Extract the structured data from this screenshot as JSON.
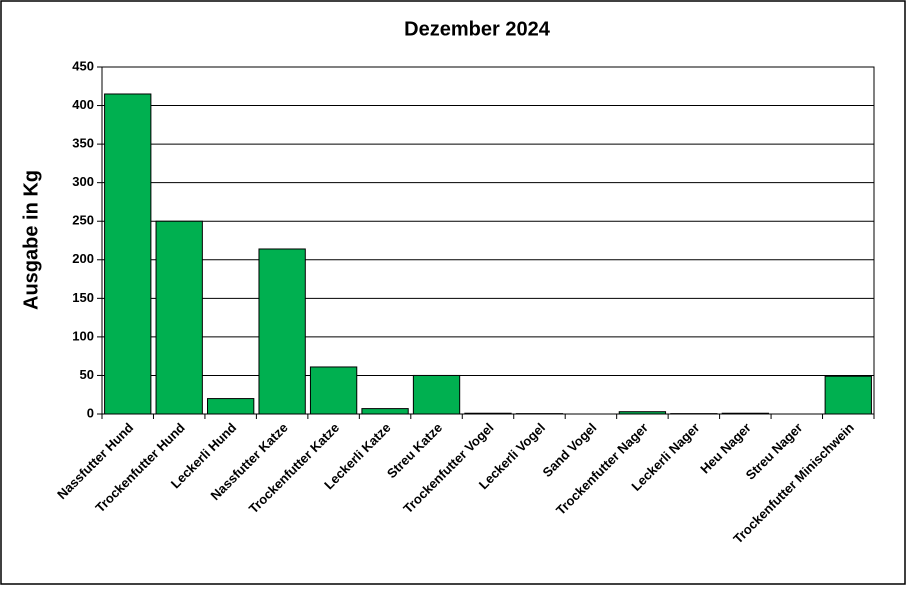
{
  "chart_data": {
    "type": "bar",
    "title": "Dezember 2024",
    "y_label": "Ausgabe in Kg",
    "categories": [
      "Nassfutter Hund",
      "Trockenfutter Hund",
      "Leckerli Hund",
      "Nassfutter Katze",
      "Trockenfutter Katze",
      "Leckerli Katze",
      "Streu Katze",
      "Trockenfutter Vogel",
      "Leckerli Vogel",
      "Sand Vogel",
      "Trockenfutter Nager",
      "Leckerli Nager",
      "Heu Nager",
      "Streu Nager",
      "Trockenfutter Minischwein"
    ],
    "values": [
      415,
      250,
      20,
      214,
      61,
      7,
      50,
      1,
      0.5,
      0,
      3,
      0.5,
      1,
      0,
      49
    ],
    "color": "#00b050",
    "ylim": [
      0,
      450
    ],
    "yticks": [
      0,
      50,
      100,
      150,
      200,
      250,
      300,
      350,
      400,
      450
    ],
    "grid": true
  }
}
